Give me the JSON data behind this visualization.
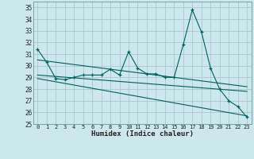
{
  "title": "",
  "xlabel": "Humidex (Indice chaleur)",
  "background_color": "#cce8ec",
  "grid_color": "#aac8cc",
  "line_color": "#006060",
  "xlim": [
    -0.5,
    23.5
  ],
  "ylim": [
    25,
    35.5
  ],
  "yticks": [
    25,
    26,
    27,
    28,
    29,
    30,
    31,
    32,
    33,
    34,
    35
  ],
  "xticks": [
    0,
    1,
    2,
    3,
    4,
    5,
    6,
    7,
    8,
    9,
    10,
    11,
    12,
    13,
    14,
    15,
    16,
    17,
    18,
    19,
    20,
    21,
    22,
    23
  ],
  "main_line": [
    31.4,
    30.3,
    28.9,
    28.8,
    29.0,
    29.2,
    29.2,
    29.2,
    29.7,
    29.2,
    31.2,
    29.8,
    29.3,
    29.3,
    29.0,
    29.0,
    31.8,
    34.8,
    32.9,
    29.8,
    28.0,
    27.0,
    26.5,
    25.6
  ],
  "trend_line1": [
    [
      0,
      30.5
    ],
    [
      23,
      28.2
    ]
  ],
  "trend_line2": [
    [
      0,
      29.2
    ],
    [
      23,
      27.8
    ]
  ],
  "trend_line3": [
    [
      0,
      28.9
    ],
    [
      23,
      25.7
    ]
  ]
}
